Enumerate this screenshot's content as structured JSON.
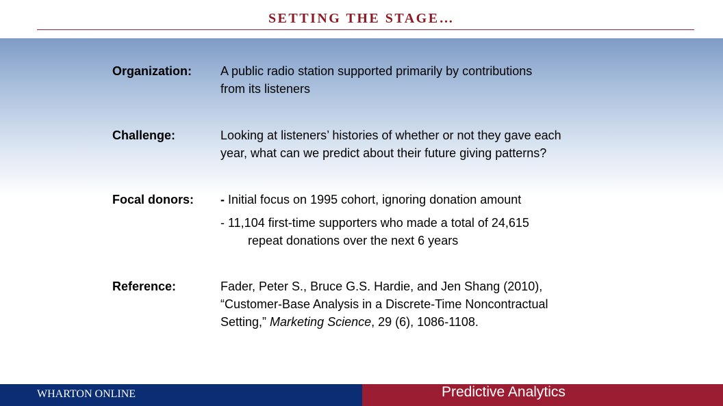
{
  "slide": {
    "title": "SETTING THE STAGE…"
  },
  "rows": {
    "organization": {
      "label": "Organization:",
      "lines": [
        "A public radio station supported primarily  by contributions",
        "from its listeners"
      ]
    },
    "challenge": {
      "label": "Challenge:",
      "lines": [
        "Looking at listeners’ histories of whether or not they gave each",
        "year, what can we predict about their future giving patterns?"
      ]
    },
    "focal_donors": {
      "label": "Focal donors:",
      "bullet1_dash": "-",
      "bullet1_text": " Initial focus on 1995 cohort, ignoring donation amount",
      "bullet2_line1": "- 11,104 first-time supporters who made a total of 24,615",
      "bullet2_line2": "repeat donations over the next 6 years"
    },
    "reference": {
      "label": "Reference:",
      "line1": "Fader, Peter S., Bruce G.S. Hardie,  and Jen Shang (2010),",
      "line2": "“Customer-Base Analysis in a Discrete-Time  Noncontractual",
      "line3_prefix": "Setting,” ",
      "line3_journal": "Marketing Science",
      "line3_suffix": ", 29 (6), 1086-1108."
    }
  },
  "footer": {
    "left_text": "WHARTON ONLINE",
    "right_text": "Predictive Analytics",
    "left_color": "#0a2d74",
    "right_color": "#9b1d31"
  },
  "colors": {
    "title": "#8b1a24",
    "gradient_top": "#7f9cc6"
  }
}
